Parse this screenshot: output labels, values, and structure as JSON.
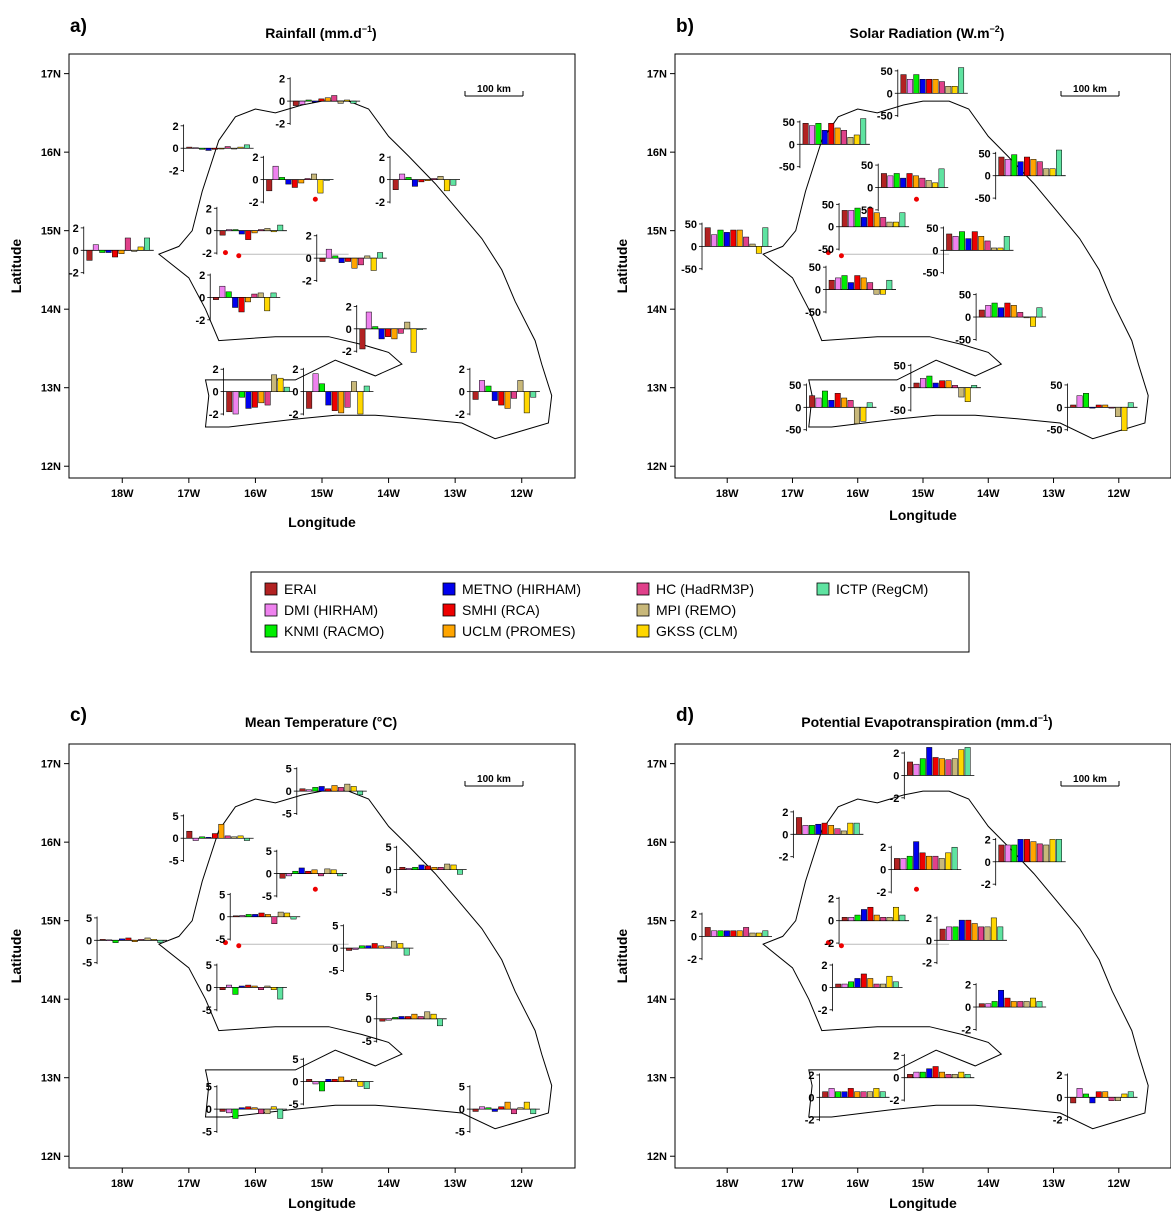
{
  "chart_data": [
    {
      "type": "bar",
      "label": "a)",
      "title": "Rainfall (mm.d",
      "title_sup": "−1",
      "title_end": ")",
      "xlabel": "Longitude",
      "ylabel": "Latitude",
      "xticks": [
        "18W",
        "17W",
        "16W",
        "15W",
        "14W",
        "13W",
        "12W"
      ],
      "yticks": [
        "12N",
        "13N",
        "14N",
        "15N",
        "16N",
        "17N"
      ],
      "xlim": [
        -18.8,
        -11.2
      ],
      "ylim": [
        11.85,
        17.25
      ],
      "scale_label": "100 km",
      "inset_ticks": [
        "2",
        "0",
        "-2"
      ],
      "inset_range": [
        -2.5,
        2.5
      ],
      "stations": [
        {
          "lon": -16.7,
          "lat": 16.05,
          "values": [
            0.1,
            0.05,
            -0.1,
            -0.2,
            -0.1,
            0.0,
            0.15,
            -0.05,
            0.1,
            0.3
          ]
        },
        {
          "lon": -15.1,
          "lat": 16.65,
          "values": [
            -0.4,
            -0.3,
            0.1,
            -0.1,
            0.2,
            0.3,
            0.5,
            -0.2,
            0.1,
            -0.2
          ]
        },
        {
          "lon": -15.5,
          "lat": 15.65,
          "values": [
            -1.0,
            1.2,
            0.2,
            -0.4,
            -0.7,
            -0.3,
            0.1,
            0.5,
            -1.2,
            0.0
          ]
        },
        {
          "lon": -13.6,
          "lat": 15.65,
          "values": [
            -0.9,
            0.5,
            0.2,
            -0.6,
            -0.2,
            -0.1,
            0.1,
            0.3,
            -1.0,
            -0.5
          ]
        },
        {
          "lon": -16.2,
          "lat": 15.0,
          "values": [
            -0.4,
            0.1,
            0.1,
            -0.3,
            -0.8,
            -0.2,
            0.1,
            0.2,
            -0.1,
            0.5
          ]
        },
        {
          "lon": -18.2,
          "lat": 14.75,
          "values": [
            -0.9,
            0.5,
            -0.2,
            -0.2,
            -0.6,
            -0.3,
            1.1,
            -0.1,
            0.3,
            1.1
          ]
        },
        {
          "lon": -14.7,
          "lat": 14.65,
          "values": [
            -0.3,
            0.8,
            0.2,
            -0.4,
            -0.3,
            -0.9,
            -0.6,
            0.2,
            -1.1,
            0.5
          ]
        },
        {
          "lon": -16.3,
          "lat": 14.15,
          "values": [
            -0.2,
            1.0,
            0.5,
            -0.9,
            -1.3,
            -0.4,
            0.3,
            0.4,
            -1.2,
            0.4
          ]
        },
        {
          "lon": -14.1,
          "lat": 13.75,
          "values": [
            -1.8,
            1.5,
            0.2,
            -0.9,
            -0.7,
            -0.9,
            -0.4,
            0.6,
            -2.1,
            0.0
          ]
        },
        {
          "lon": -16.1,
          "lat": 12.95,
          "values": [
            -1.8,
            -2.0,
            -0.5,
            -1.5,
            -1.4,
            -1.0,
            -1.2,
            1.5,
            1.2,
            0.4
          ]
        },
        {
          "lon": -14.9,
          "lat": 12.95,
          "values": [
            -1.5,
            1.6,
            0.7,
            -1.2,
            -1.7,
            -1.9,
            -1.4,
            0.9,
            -2.0,
            0.5
          ]
        },
        {
          "lon": -12.4,
          "lat": 12.95,
          "values": [
            -0.7,
            1.0,
            0.5,
            -0.8,
            -1.2,
            -1.5,
            -0.6,
            1.0,
            -1.9,
            -0.5
          ]
        }
      ]
    },
    {
      "type": "bar",
      "label": "b)",
      "title": "Solar Radiation  (W.m",
      "title_sup": "−2",
      "title_end": ")",
      "xlabel": "Longitude",
      "ylabel": "Latitude",
      "xticks": [
        "18W",
        "17W",
        "16W",
        "15W",
        "14W",
        "13W",
        "12W"
      ],
      "yticks": [
        "12N",
        "13N",
        "14N",
        "15N",
        "16N",
        "17N"
      ],
      "xlim": [
        -18.8,
        -11.2
      ],
      "ylim": [
        11.85,
        17.25
      ],
      "scale_label": "100 km",
      "inset_ticks": [
        "50",
        "0",
        "-50"
      ],
      "inset_range": [
        -60,
        60
      ],
      "stations": [
        {
          "lon": -16.5,
          "lat": 16.1,
          "values": [
            45,
            40,
            45,
            30,
            45,
            35,
            30,
            15,
            20,
            55
          ]
        },
        {
          "lon": -15.0,
          "lat": 16.75,
          "values": [
            40,
            30,
            40,
            30,
            30,
            30,
            25,
            15,
            15,
            55
          ]
        },
        {
          "lon": -15.3,
          "lat": 15.55,
          "values": [
            30,
            25,
            30,
            20,
            30,
            25,
            20,
            15,
            10,
            40
          ]
        },
        {
          "lon": -13.5,
          "lat": 15.7,
          "values": [
            40,
            35,
            45,
            30,
            40,
            35,
            30,
            15,
            15,
            55
          ]
        },
        {
          "lon": -15.9,
          "lat": 15.05,
          "values": [
            35,
            35,
            40,
            20,
            40,
            30,
            20,
            10,
            10,
            30
          ]
        },
        {
          "lon": -18.0,
          "lat": 14.8,
          "values": [
            40,
            25,
            35,
            30,
            35,
            35,
            20,
            5,
            -15,
            40
          ]
        },
        {
          "lon": -14.3,
          "lat": 14.75,
          "values": [
            35,
            30,
            40,
            25,
            40,
            30,
            20,
            5,
            5,
            30
          ]
        },
        {
          "lon": -16.1,
          "lat": 14.25,
          "values": [
            20,
            25,
            30,
            15,
            30,
            25,
            15,
            -10,
            -10,
            20
          ]
        },
        {
          "lon": -13.8,
          "lat": 13.9,
          "values": [
            15,
            25,
            30,
            20,
            30,
            25,
            10,
            0,
            -20,
            20
          ]
        },
        {
          "lon": -16.4,
          "lat": 12.75,
          "values": [
            25,
            20,
            35,
            15,
            30,
            20,
            15,
            -35,
            -30,
            10
          ]
        },
        {
          "lon": -14.8,
          "lat": 13.0,
          "values": [
            10,
            20,
            25,
            10,
            15,
            15,
            5,
            -20,
            -30,
            5
          ]
        },
        {
          "lon": -12.4,
          "lat": 12.75,
          "values": [
            5,
            25,
            30,
            0,
            5,
            5,
            0,
            -20,
            -50,
            10
          ]
        }
      ]
    },
    {
      "type": "bar",
      "label": "c)",
      "title": "Mean Temperature (°C)",
      "title_sup": "",
      "title_end": "",
      "xlabel": "Longitude",
      "ylabel": "Latitude",
      "xticks": [
        "18W",
        "17W",
        "16W",
        "15W",
        "14W",
        "13W",
        "12W"
      ],
      "yticks": [
        "12N",
        "13N",
        "14N",
        "15N",
        "16N",
        "17N"
      ],
      "xlim": [
        -18.8,
        -11.2
      ],
      "ylim": [
        11.85,
        17.25
      ],
      "scale_label": "100 km",
      "inset_ticks": [
        "5",
        "0",
        "-5"
      ],
      "inset_range": [
        -6,
        6
      ],
      "stations": [
        {
          "lon": -16.7,
          "lat": 16.05,
          "values": [
            1.5,
            -0.5,
            0.3,
            0.2,
            1.0,
            3.0,
            0.5,
            0.3,
            0.5,
            -0.5
          ]
        },
        {
          "lon": -15.0,
          "lat": 16.65,
          "values": [
            0.5,
            0.3,
            0.8,
            1.0,
            0.5,
            1.2,
            0.8,
            1.5,
            1.0,
            -0.8
          ]
        },
        {
          "lon": -15.3,
          "lat": 15.6,
          "values": [
            -1.0,
            -0.5,
            0.5,
            1.2,
            0.5,
            0.8,
            -0.5,
            1.0,
            0.8,
            -0.5
          ]
        },
        {
          "lon": -13.5,
          "lat": 15.65,
          "values": [
            0.5,
            0.3,
            0.5,
            1.0,
            0.8,
            0.5,
            0.5,
            1.2,
            1.0,
            -1.0
          ]
        },
        {
          "lon": -16.0,
          "lat": 15.05,
          "values": [
            0.2,
            0.3,
            0.5,
            0.5,
            0.8,
            0.5,
            -1.5,
            1.0,
            0.8,
            -0.5
          ]
        },
        {
          "lon": -18.0,
          "lat": 14.75,
          "values": [
            0.2,
            0.1,
            -0.5,
            0.3,
            0.5,
            -0.3,
            0.2,
            0.5,
            0.2,
            -0.5
          ]
        },
        {
          "lon": -14.3,
          "lat": 14.65,
          "values": [
            -0.5,
            -0.3,
            0.5,
            0.5,
            1.0,
            0.5,
            0.3,
            1.5,
            1.0,
            -1.5
          ]
        },
        {
          "lon": -16.2,
          "lat": 14.15,
          "values": [
            -0.5,
            0.5,
            -1.5,
            0.3,
            0.5,
            0.3,
            -0.5,
            0.3,
            -0.5,
            -2.5
          ]
        },
        {
          "lon": -13.8,
          "lat": 13.75,
          "values": [
            -0.5,
            -0.3,
            0.3,
            0.5,
            0.5,
            1.0,
            0.5,
            1.5,
            1.0,
            -1.5
          ]
        },
        {
          "lon": -16.2,
          "lat": 12.6,
          "values": [
            -0.5,
            -0.8,
            -2.0,
            0.3,
            0.5,
            0.3,
            -1.0,
            -1.0,
            0.5,
            -2.0
          ]
        },
        {
          "lon": -14.9,
          "lat": 12.95,
          "values": [
            0.5,
            -0.5,
            -2.0,
            0.5,
            0.5,
            1.0,
            0.3,
            0.5,
            -1.0,
            -1.5
          ]
        },
        {
          "lon": -12.4,
          "lat": 12.6,
          "values": [
            -0.5,
            0.5,
            0.3,
            -0.5,
            0.5,
            1.5,
            -1.0,
            0.3,
            1.5,
            -1.0
          ]
        }
      ]
    },
    {
      "type": "bar",
      "label": "d)",
      "title": "Potential Evapotranspiration (mm.d",
      "title_sup": "−1",
      "title_end": ")",
      "xlabel": "Longitude",
      "ylabel": "Latitude",
      "xticks": [
        "18W",
        "17W",
        "16W",
        "15W",
        "14W",
        "13W",
        "12W"
      ],
      "yticks": [
        "12N",
        "13N",
        "14N",
        "15N",
        "16N",
        "17N"
      ],
      "xlim": [
        -18.8,
        -11.2
      ],
      "ylim": [
        11.85,
        17.25
      ],
      "scale_label": "100 km",
      "inset_ticks": [
        "2",
        "0",
        "-2"
      ],
      "inset_range": [
        -2.5,
        2.5
      ],
      "stations": [
        {
          "lon": -16.6,
          "lat": 16.1,
          "values": [
            1.5,
            0.8,
            0.8,
            0.9,
            1.0,
            0.8,
            0.5,
            0.3,
            1.0,
            1.0
          ]
        },
        {
          "lon": -14.9,
          "lat": 16.85,
          "values": [
            1.2,
            1.0,
            1.5,
            2.5,
            1.6,
            1.5,
            1.4,
            1.5,
            2.3,
            2.5
          ]
        },
        {
          "lon": -15.1,
          "lat": 15.65,
          "values": [
            1.0,
            1.0,
            1.2,
            2.5,
            1.5,
            1.2,
            1.2,
            1.0,
            1.5,
            2.0
          ]
        },
        {
          "lon": -13.5,
          "lat": 15.75,
          "values": [
            1.5,
            1.5,
            1.5,
            2.0,
            2.0,
            1.8,
            1.6,
            1.5,
            2.0,
            2.0
          ]
        },
        {
          "lon": -15.9,
          "lat": 15.0,
          "values": [
            0.3,
            0.3,
            0.5,
            1.0,
            1.2,
            0.5,
            0.3,
            0.3,
            1.2,
            0.5
          ]
        },
        {
          "lon": -18.0,
          "lat": 14.8,
          "values": [
            0.8,
            0.5,
            0.5,
            0.5,
            0.5,
            0.5,
            0.8,
            0.3,
            0.3,
            0.5
          ]
        },
        {
          "lon": -14.4,
          "lat": 14.75,
          "values": [
            1.0,
            1.2,
            1.2,
            1.8,
            1.8,
            1.5,
            1.2,
            1.2,
            2.0,
            1.2
          ]
        },
        {
          "lon": -16.0,
          "lat": 14.15,
          "values": [
            0.3,
            0.3,
            0.5,
            0.8,
            1.2,
            0.8,
            0.3,
            0.3,
            1.0,
            0.5
          ]
        },
        {
          "lon": -13.8,
          "lat": 13.9,
          "values": [
            0.3,
            0.3,
            0.5,
            1.5,
            0.8,
            0.5,
            0.5,
            0.5,
            0.8,
            0.5
          ]
        },
        {
          "lon": -16.2,
          "lat": 12.75,
          "values": [
            0.5,
            0.8,
            0.5,
            0.5,
            0.8,
            0.5,
            0.5,
            0.5,
            0.8,
            0.5
          ]
        },
        {
          "lon": -14.9,
          "lat": 13.0,
          "values": [
            0.3,
            0.5,
            0.5,
            0.8,
            1.0,
            0.5,
            0.3,
            0.3,
            0.5,
            0.3
          ]
        },
        {
          "lon": -12.4,
          "lat": 12.75,
          "values": [
            -0.5,
            0.8,
            0.3,
            -0.5,
            0.5,
            0.5,
            -0.3,
            -0.3,
            0.3,
            0.5
          ]
        }
      ]
    }
  ],
  "legend": {
    "items": [
      {
        "name": "ERAI",
        "color": "#b22222"
      },
      {
        "name": "DMI (HIRHAM)",
        "color": "#ee82ee"
      },
      {
        "name": "KNMI (RACMO)",
        "color": "#00ee00"
      },
      {
        "name": "METNO (HIRHAM)",
        "color": "#0000ee"
      },
      {
        "name": "SMHI (RCA)",
        "color": "#ee0000"
      },
      {
        "name": "UCLM (PROMES)",
        "color": "#ffa500"
      },
      {
        "name": "HC (HadRM3P)",
        "color": "#e0408a"
      },
      {
        "name": "MPI (REMO)",
        "color": "#c8b87a"
      },
      {
        "name": "GKSS (CLM)",
        "color": "#ffd700"
      },
      {
        "name": "ICTP (RegCM)",
        "color": "#5fe3a1"
      }
    ]
  }
}
